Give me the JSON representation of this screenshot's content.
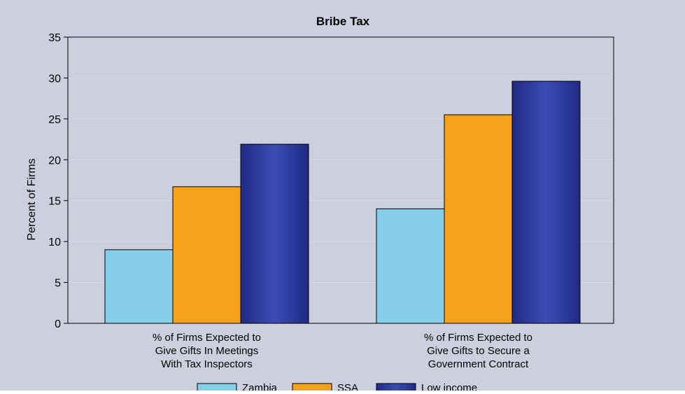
{
  "chart_data": {
    "type": "bar",
    "title": "Bribe Tax",
    "xlabel": "",
    "ylabel": "Percent of Firms",
    "ylim": [
      0,
      35
    ],
    "yticks": [
      0,
      5,
      10,
      15,
      20,
      25,
      30,
      35
    ],
    "grid": true,
    "legend_position": "bottom",
    "categories": [
      [
        "% of Firms Expected to",
        "Give Gifts In Meetings",
        "With Tax Inspectors"
      ],
      [
        "% of Firms Expected to",
        "Give Gifts to Secure a",
        "Government Contract"
      ]
    ],
    "series": [
      {
        "name": "Zambia",
        "values": [
          9.0,
          14.0
        ],
        "color": "#87ceeb"
      },
      {
        "name": "SSA",
        "values": [
          16.7,
          25.5
        ],
        "color": "#f7a21b"
      },
      {
        "name": "Low income",
        "values": [
          21.9,
          29.6
        ],
        "color": "#2a3a99"
      }
    ],
    "colors": {
      "background": "#cccfdd",
      "plot_border": "#000000",
      "gridline": "#d6d8e3"
    }
  }
}
